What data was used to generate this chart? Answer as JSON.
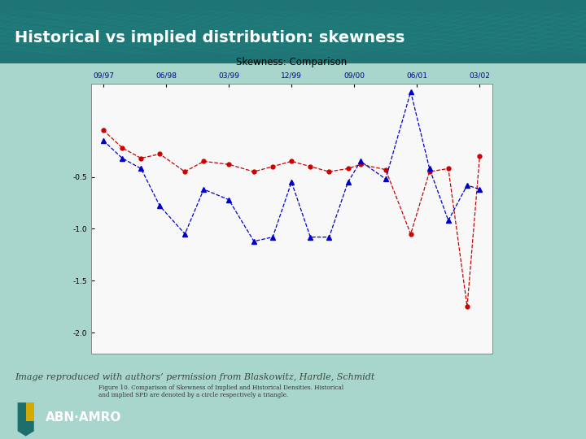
{
  "title": "Historical vs implied distribution: skewness",
  "chart_title": "Skewness: Comparison",
  "attribution": "Image reproduced with authors’ permission from Blaskowitz, Hardle, Schmidt",
  "bg_top_color": "#1a6e6e",
  "bg_body_color": "#a8d5cc",
  "bg_footer_color": "#7a8f85",
  "chart_bg": "#f8f8f8",
  "x_labels": [
    "09/97",
    "06/98",
    "03/99",
    "12/99",
    "09/00",
    "06/01",
    "03/02"
  ],
  "implied_color": "#cc0000",
  "historical_color": "#0000cc",
  "implied_x": [
    0.0,
    0.3,
    0.6,
    0.9,
    1.3,
    1.6,
    2.0,
    2.4,
    2.7,
    3.0,
    3.3,
    3.6,
    3.9,
    4.1,
    4.5,
    4.9,
    5.2,
    5.5,
    5.8,
    6.0
  ],
  "implied_y": [
    -0.05,
    -0.22,
    -0.32,
    -0.28,
    -0.45,
    -0.35,
    -0.38,
    -0.45,
    -0.4,
    -0.35,
    -0.4,
    -0.45,
    -0.42,
    -0.38,
    -0.43,
    -1.05,
    -0.45,
    -0.42,
    -1.75,
    -0.3
  ],
  "historical_x": [
    0.0,
    0.3,
    0.6,
    0.9,
    1.3,
    1.6,
    2.0,
    2.4,
    2.7,
    3.0,
    3.3,
    3.6,
    3.9,
    4.1,
    4.5,
    4.9,
    5.2,
    5.5,
    5.8,
    6.0
  ],
  "historical_y": [
    -0.15,
    -0.32,
    -0.42,
    -0.78,
    -1.05,
    -0.62,
    -0.72,
    -1.12,
    -1.08,
    -0.55,
    -1.08,
    -1.08,
    -0.55,
    -0.35,
    -0.52,
    0.32,
    -0.42,
    -0.92,
    -0.58,
    -0.62
  ],
  "ylim": [
    -2.2,
    0.4
  ],
  "yticks": [
    -0.5,
    -1.0,
    -1.5,
    -2.0
  ],
  "ytick_labels": [
    "-0.5",
    "-1.0",
    "-1.5",
    "-2.0"
  ],
  "caption_line1": "Figure 10. Comparison of Skewness of Implied and Historical Densities. Historical",
  "caption_line2": "and implied SPD are denoted by a circle respectively a triangle.",
  "title_fontsize": 14,
  "abn_text": "ABN·AMRO"
}
